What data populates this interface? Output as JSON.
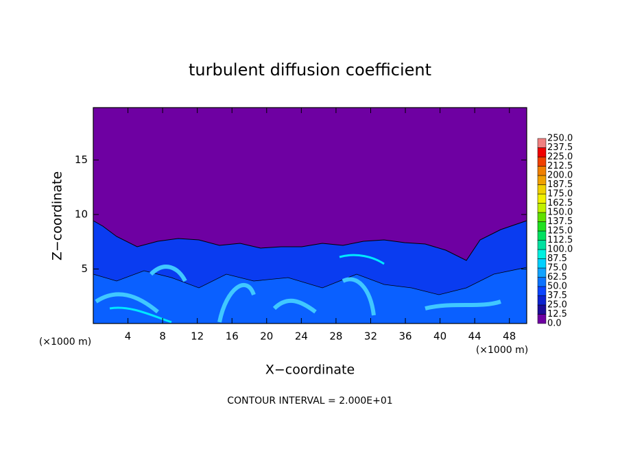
{
  "chart_data": {
    "type": "contour",
    "title": "turbulent diffusion coefficient",
    "xlabel": "X−coordinate",
    "ylabel": "Z−coordinate",
    "x_unit": "(×1000 m)",
    "y_unit": "(×1000 m)",
    "footer": "CONTOUR INTERVAL = 2.000E+01",
    "xlim": [
      0,
      50
    ],
    "ylim": [
      0,
      19.8
    ],
    "xticks": [
      4,
      8,
      12,
      16,
      20,
      24,
      28,
      32,
      36,
      40,
      44,
      48
    ],
    "yticks": [
      5,
      10,
      15
    ],
    "colorbar": {
      "levels": [
        {
          "value": 0,
          "label": "0.0"
        },
        {
          "value": 12.5,
          "label": "12.5"
        },
        {
          "value": 25,
          "label": "25.0"
        },
        {
          "value": 37.5,
          "label": "37.5"
        },
        {
          "value": 50,
          "label": "50.0"
        },
        {
          "value": 62.5,
          "label": "62.5"
        },
        {
          "value": 75,
          "label": "75.0"
        },
        {
          "value": 87.5,
          "label": "87.5"
        },
        {
          "value": 100,
          "label": "100.0"
        },
        {
          "value": 112.5,
          "label": "112.5"
        },
        {
          "value": 125,
          "label": "125.0"
        },
        {
          "value": 137.5,
          "label": "137.5"
        },
        {
          "value": 150,
          "label": "150.0"
        },
        {
          "value": 162.5,
          "label": "162.5"
        },
        {
          "value": 175,
          "label": "175.0"
        },
        {
          "value": 187.5,
          "label": "187.5"
        },
        {
          "value": 200,
          "label": "200.0"
        },
        {
          "value": 212.5,
          "label": "212.5"
        },
        {
          "value": 225,
          "label": "225.0"
        },
        {
          "value": 237.5,
          "label": "237.5"
        },
        {
          "value": 250,
          "label": "250.0"
        }
      ],
      "colors": [
        "#6e00a2",
        "#1c0c98",
        "#0c22d0",
        "#0a44ff",
        "#0a72ff",
        "#10a2ff",
        "#00d0ff",
        "#00f0e0",
        "#00e0a0",
        "#00e060",
        "#20e020",
        "#60e000",
        "#c0f000",
        "#f0f000",
        "#f0d000",
        "#f0a000",
        "#f08000",
        "#f04000",
        "#f00000",
        "#f08080"
      ]
    }
  }
}
